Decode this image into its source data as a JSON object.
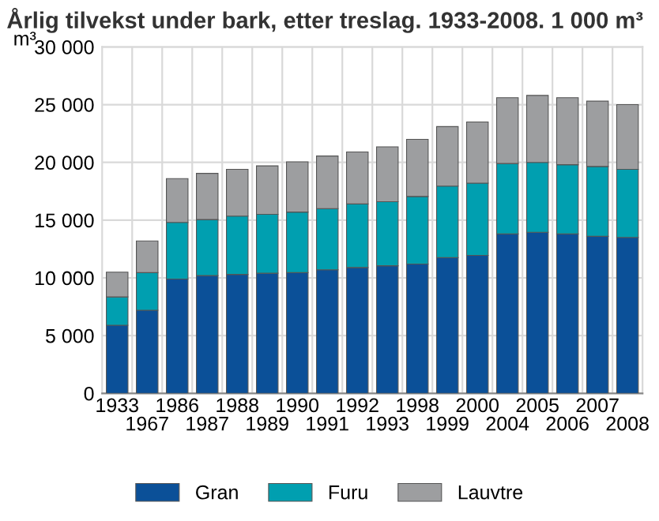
{
  "chart_data": {
    "type": "bar",
    "stacked": true,
    "title": "Årlig tilvekst under bark, etter treslag. 1933-2008. 1 000 m³",
    "ylabel": "m³",
    "categories": [
      "1933",
      "1967",
      "1986",
      "1987",
      "1988",
      "1989",
      "1990",
      "1991",
      "1992",
      "1993",
      "1998",
      "1999",
      "2000",
      "2004",
      "2005",
      "2006",
      "2007",
      "2008"
    ],
    "series": [
      {
        "name": "Gran",
        "color": "#0b5098",
        "values": [
          5900,
          7200,
          9900,
          10200,
          10300,
          10400,
          10450,
          10700,
          10900,
          11050,
          11200,
          11750,
          11950,
          13800,
          13950,
          13800,
          13600,
          13500
        ]
      },
      {
        "name": "Furu",
        "color": "#009fb0",
        "values": [
          2450,
          3250,
          4900,
          4850,
          5050,
          5100,
          5250,
          5300,
          5500,
          5550,
          5850,
          6200,
          6250,
          6100,
          6050,
          6000,
          6050,
          5900
        ]
      },
      {
        "name": "Lauvtre",
        "color": "#9d9ea0",
        "values": [
          2150,
          2750,
          3800,
          4000,
          4050,
          4200,
          4350,
          4550,
          4500,
          4750,
          4950,
          5150,
          5300,
          5700,
          5800,
          5800,
          5650,
          5600
        ]
      }
    ],
    "ylim": [
      0,
      30000
    ],
    "yticks": [
      0,
      {
        "value": 5000,
        "label": "5 000"
      },
      {
        "value": 10000,
        "label": "10 000"
      },
      {
        "value": 15000,
        "label": "15 000"
      },
      {
        "value": 20000,
        "label": "20 000"
      },
      {
        "value": 25000,
        "label": "25 000"
      },
      {
        "value": 30000,
        "label": "30 000"
      }
    ],
    "grid": true,
    "legend": "bottom"
  }
}
